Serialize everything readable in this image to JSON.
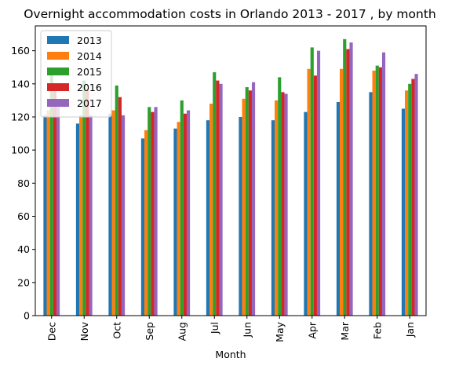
{
  "chart_data": {
    "type": "bar",
    "title": "Overnight accommodation costs in Orlando 2013 - 2017 , by month",
    "xlabel": "Month",
    "ylabel": "",
    "ylim": [
      0,
      175
    ],
    "yticks": [
      0,
      20,
      40,
      60,
      80,
      100,
      120,
      140,
      160
    ],
    "grid": false,
    "legend_position": "top-left",
    "categories": [
      "Dec",
      "Nov",
      "Oct",
      "Sep",
      "Aug",
      "Jul",
      "Jun",
      "May",
      "Apr",
      "Mar",
      "Feb",
      "Jan"
    ],
    "series": [
      {
        "name": "2013",
        "color": "#1f77b4",
        "values": [
          121,
          116,
          122,
          107,
          113,
          118,
          120,
          118,
          123,
          129,
          135,
          125
        ]
      },
      {
        "name": "2014",
        "color": "#ff7f0e",
        "values": [
          124,
          121,
          124,
          112,
          117,
          128,
          131,
          130,
          149,
          149,
          148,
          136
        ]
      },
      {
        "name": "2015",
        "color": "#2ca02c",
        "values": [
          146,
          142,
          139,
          126,
          130,
          147,
          138,
          144,
          162,
          167,
          151,
          140
        ]
      },
      {
        "name": "2016",
        "color": "#d62728",
        "values": [
          140,
          136,
          132,
          123,
          122,
          142,
          136,
          135,
          145,
          161,
          150,
          143
        ]
      },
      {
        "name": "2017",
        "color": "#9467bd",
        "values": [
          128,
          121,
          121,
          126,
          124,
          140,
          141,
          134,
          160,
          165,
          159,
          146
        ]
      }
    ]
  }
}
